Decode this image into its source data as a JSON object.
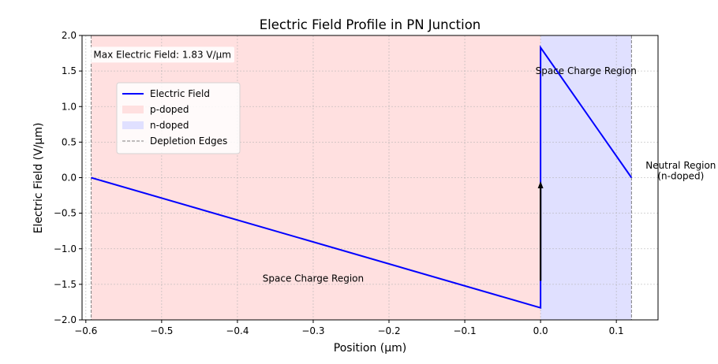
{
  "chart_data": {
    "type": "line",
    "title": "Electric Field Profile in PN Junction",
    "xlabel": "Position (µm)",
    "ylabel": "Electric Field (V/µm)",
    "xlim": [
      -0.605,
      0.155
    ],
    "ylim": [
      -2.0,
      2.0
    ],
    "x_ticks": [
      -0.6,
      -0.5,
      -0.4,
      -0.3,
      -0.2,
      -0.1,
      0.0,
      0.1
    ],
    "x_tick_labels": [
      "−0.6",
      "−0.5",
      "−0.4",
      "−0.3",
      "−0.2",
      "−0.1",
      "0.0",
      "0.1"
    ],
    "y_ticks": [
      -2.0,
      -1.5,
      -1.0,
      -0.5,
      0.0,
      0.5,
      1.0,
      1.5,
      2.0
    ],
    "y_tick_labels": [
      "−2.0",
      "−1.5",
      "−1.0",
      "−0.5",
      "0.0",
      "0.5",
      "1.0",
      "1.5",
      "2.0"
    ],
    "grid": true,
    "regions": [
      {
        "name": "p-doped",
        "x0": -0.593,
        "x1": 0.0,
        "color": "#ffe0e0"
      },
      {
        "name": "n-doped",
        "x0": 0.0,
        "x1": 0.12,
        "color": "#e0e0ff"
      }
    ],
    "depletion_edges": [
      -0.593,
      0.12
    ],
    "series": [
      {
        "name": "Electric Field",
        "color": "#0000ff",
        "x": [
          -0.593,
          0.0,
          0.0,
          0.12
        ],
        "y": [
          0.0,
          -1.83,
          1.83,
          0.0
        ]
      }
    ],
    "arrow": {
      "x": 0.0,
      "y_from": -1.45,
      "y_to": -0.05
    },
    "annotations": [
      {
        "text": "Max Electric Field: 1.83 V/μm",
        "x": -0.59,
        "y": 1.73,
        "anchor": "start",
        "boxed": true
      },
      {
        "text": "Space Charge Region",
        "x": -0.3,
        "y": -1.42,
        "anchor": "middle"
      },
      {
        "text": "Space Charge Region",
        "x": 0.06,
        "y": 1.5,
        "anchor": "middle"
      },
      {
        "text": "Neutral Region",
        "x": 0.185,
        "y": 0.17,
        "anchor": "middle"
      },
      {
        "text": "(n-doped)",
        "x": 0.185,
        "y": 0.02,
        "anchor": "middle"
      }
    ],
    "legend": {
      "placement": "upper-left",
      "entries": [
        {
          "label": "Electric Field",
          "kind": "line",
          "color": "#0000ff"
        },
        {
          "label": "p-doped",
          "kind": "patch",
          "color": "#ffe0e0"
        },
        {
          "label": "n-doped",
          "kind": "patch",
          "color": "#e0e0ff"
        },
        {
          "label": "Depletion Edges",
          "kind": "dashed",
          "color": "#808080"
        }
      ]
    }
  }
}
